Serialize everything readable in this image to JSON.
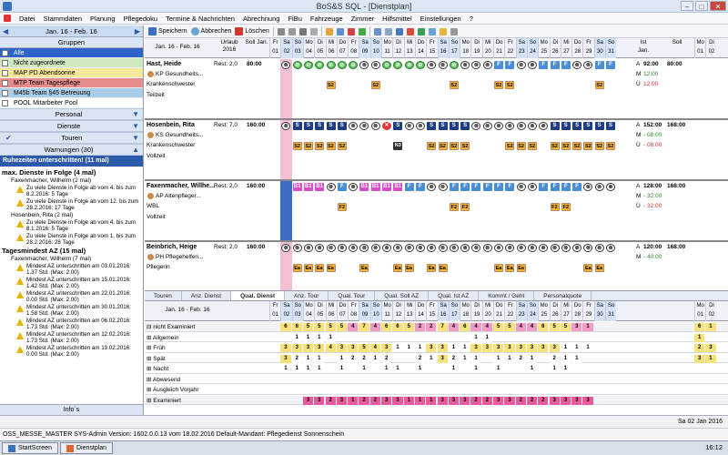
{
  "window": {
    "title": "BoS&S SQL - [Dienstplan]",
    "min": "–",
    "max": "□",
    "close": "✕"
  },
  "menu": [
    "Datei",
    "Stammdaten",
    "Planung",
    "Pflegedoku",
    "Termine & Nachrichten",
    "Abrechnung",
    "FiBu",
    "Fahrzeuge",
    "Zimmer",
    "Hilfsmittel",
    "Einstellungen",
    "?"
  ],
  "left": {
    "date_range": "Jan. 16 - Feb. 16",
    "gruppen_label": "Gruppen",
    "groups": [
      {
        "label": "Alle",
        "color": "#2f63c9",
        "text_color": "#ffffff"
      },
      {
        "label": "Nicht zugeordnete",
        "color": "#cfe8c2",
        "text_color": "#000000"
      },
      {
        "label": "MAP PD Abendsonne",
        "color": "#f6e79a",
        "text_color": "#000000"
      },
      {
        "label": "MTP Team Tagespflege",
        "color": "#e78c8c",
        "text_color": "#000000"
      },
      {
        "label": "M45b Team §45 Betreuung",
        "color": "#a9cde8",
        "text_color": "#000000"
      },
      {
        "label": "POOL Mitarbeiter Pool",
        "color": "#ffffff",
        "text_color": "#000000"
      }
    ],
    "personal_label": "Personal",
    "dienste_label": "Dienste",
    "touren_label": "Touren",
    "warnungen_label": "Warnungen (30)",
    "ruhe_label": "Ruhezeiten unterschritten! (11 mal)",
    "warnings": [
      {
        "type": "head",
        "text": "max. Dienste in Folge (4 mal)"
      },
      {
        "type": "person",
        "text": "Faxenmacher, Wilhelm (2 mal)"
      },
      {
        "type": "item",
        "text": "Zu viele Dienste in Folge ab vom 4. bis zum 8.2.2016: 5 Tage"
      },
      {
        "type": "item",
        "text": "Zu viele Dienste in Folge ab vom 12. bis zum 28.2.2016: 17 Tage"
      },
      {
        "type": "person",
        "text": "Hosenbein, Rita (2 mal)"
      },
      {
        "type": "item",
        "text": "Zu viele Dienste in Folge ab vom 4. bis zum 8.1.2016: 5 Tage"
      },
      {
        "type": "item",
        "text": "Zu viele Dienste in Folge ab vom 1. bis zum 28.2.2016: 28 Tage"
      },
      {
        "type": "head",
        "text": "Tagesmindest AZ (15 mal)"
      },
      {
        "type": "person",
        "text": "Faxenmacher, Wilhelm (7 mal)"
      },
      {
        "type": "item",
        "text": "Mindest AZ unterschritten am 03.01.2016: 1.37 Std. (Max: 2.00)"
      },
      {
        "type": "item",
        "text": "Mindest AZ unterschritten am 15.01.2016: 1.42 Std. (Max: 2.00)"
      },
      {
        "type": "item",
        "text": "Mindest AZ unterschritten am 22.01.2016: 0.00 Std. (Max: 2.00)"
      },
      {
        "type": "item",
        "text": "Mindest AZ unterschritten am 30.01.2016: 1.58 Std. (Max: 2.00)"
      },
      {
        "type": "item",
        "text": "Mindest AZ unterschritten am 06.02.2016: 1.73 Std. (Max: 2.00)"
      },
      {
        "type": "item",
        "text": "Mindest AZ unterschritten am 12.02.2016: 1.73 Std. (Max: 2.00)"
      },
      {
        "type": "item",
        "text": "Mindest AZ unterschritten am 19.02.2016: 0.00 Std. (Max: 2.00)"
      }
    ],
    "infos_label": "Info´s"
  },
  "toolbar": {
    "save": "Speichern",
    "cancel": "Abbrechen",
    "delete": "Löschen"
  },
  "grid": {
    "range": "Jan. 16 - Feb. 16",
    "urlaub": "Urlaub 2016",
    "soll": "Soll Jan.",
    "ist": "Ist",
    "soll_feb": "Soll",
    "month_label": "Jan.",
    "days": [
      {
        "n": "01",
        "d": "Fr"
      },
      {
        "n": "02",
        "d": "Sa"
      },
      {
        "n": "03",
        "d": "So"
      },
      {
        "n": "04",
        "d": "Mo"
      },
      {
        "n": "05",
        "d": "Di"
      },
      {
        "n": "06",
        "d": "Mi"
      },
      {
        "n": "07",
        "d": "Do"
      },
      {
        "n": "08",
        "d": "Fr"
      },
      {
        "n": "09",
        "d": "Sa"
      },
      {
        "n": "10",
        "d": "So"
      },
      {
        "n": "11",
        "d": "Mo"
      },
      {
        "n": "12",
        "d": "Di"
      },
      {
        "n": "13",
        "d": "Mi"
      },
      {
        "n": "14",
        "d": "Do"
      },
      {
        "n": "15",
        "d": "Fr"
      },
      {
        "n": "16",
        "d": "Sa"
      },
      {
        "n": "17",
        "d": "So"
      },
      {
        "n": "18",
        "d": "Mo"
      },
      {
        "n": "19",
        "d": "Di"
      },
      {
        "n": "20",
        "d": "Mi"
      },
      {
        "n": "21",
        "d": "Do"
      },
      {
        "n": "22",
        "d": "Fr"
      },
      {
        "n": "23",
        "d": "Sa"
      },
      {
        "n": "24",
        "d": "So"
      },
      {
        "n": "25",
        "d": "Mo"
      },
      {
        "n": "26",
        "d": "Di"
      },
      {
        "n": "27",
        "d": "Mi"
      },
      {
        "n": "28",
        "d": "Do"
      },
      {
        "n": "29",
        "d": "Fr"
      },
      {
        "n": "30",
        "d": "Sa"
      },
      {
        "n": "31",
        "d": "So"
      }
    ],
    "tail_days": [
      {
        "n": "01",
        "d": "Mo"
      },
      {
        "n": "02",
        "d": "Di"
      }
    ],
    "employees": [
      {
        "name": "Hast, Heide",
        "tag": "KP  Gesundheits...",
        "role": "Krankenschwester",
        "type": "Teilzeit",
        "rest": "Rest: 2,0",
        "soll": "80:00",
        "ist_a": "A",
        "ist_a_v": "92:00",
        "ist_m": "M",
        "ist_m_v": "12:00",
        "ist_u": "Ü",
        "ist_u_v": "12:00",
        "soll_v": "80:00",
        "row1": [
          "",
          "x",
          "o",
          "o",
          "o",
          "o",
          "o",
          "o",
          "x",
          "x",
          "o",
          "o",
          "o",
          "o",
          "x",
          "x",
          "o",
          "x",
          "x",
          "x",
          "f",
          "f",
          "x",
          "x",
          "f",
          "f",
          "f",
          "x",
          "x",
          "f",
          "f"
        ],
        "row2": [
          "",
          "",
          "",
          "",
          "",
          "y",
          "",
          "",
          "",
          "y",
          "",
          "",
          "",
          "",
          "",
          "",
          "y",
          "",
          "",
          "",
          "y",
          "y",
          "",
          "",
          "",
          "",
          "",
          "",
          "",
          "y",
          ""
        ]
      },
      {
        "name": "Hosenbein, Rita",
        "tag": "KS  Gesundheits...",
        "role": "Krankenschwester",
        "type": "Vollzeit",
        "rest": "Rest: 7,0",
        "soll": "160:00",
        "ist_a": "A",
        "ist_a_v": "152:00",
        "ist_m": "M",
        "ist_m_v": "- 08:00",
        "ist_u": "Ü",
        "ist_u_v": "- 08:00",
        "soll_v": "168:00",
        "row1": [
          "",
          "x",
          "s",
          "s",
          "s",
          "s",
          "s",
          "x",
          "x",
          "x",
          "r",
          "s",
          "x",
          "x",
          "s",
          "s",
          "s",
          "s",
          "x",
          "x",
          "x",
          "x",
          "x",
          "x",
          "x",
          "s",
          "s",
          "s",
          "s",
          "s",
          "s"
        ],
        "row2": [
          "",
          "",
          "y",
          "y",
          "y",
          "y",
          "y",
          "",
          "",
          "",
          "",
          "k",
          "",
          "",
          "y",
          "y",
          "y",
          "y",
          "",
          "",
          "",
          "y",
          "y",
          "y",
          "",
          "y",
          "y",
          "y",
          "y",
          "y",
          "y"
        ]
      },
      {
        "name": "Faxenmacher, Willhe...",
        "tag": "AP  Altenpfleger...",
        "role": "WBL",
        "type": "Vollzeit",
        "rest": "Rest: 2,0",
        "soll": "160:00",
        "ist_a": "A",
        "ist_a_v": "128:00",
        "ist_m": "M",
        "ist_m_v": "- 32:00",
        "ist_u": "Ü",
        "ist_u_v": "- 32:00",
        "soll_v": "168:00",
        "row1": [
          "",
          "",
          "b",
          "b",
          "b",
          "x",
          "f",
          "x",
          "b",
          "b",
          "b",
          "b",
          "f",
          "f",
          "x",
          "x",
          "f",
          "f",
          "f",
          "f",
          "f",
          "f",
          "x",
          "x",
          "f",
          "f",
          "f",
          "f",
          "x",
          "x",
          "x"
        ],
        "row2": [
          "",
          "",
          "",
          "",
          "",
          "",
          "y",
          "",
          "",
          "",
          "",
          "",
          "",
          "",
          "",
          "",
          "y",
          "y",
          "",
          "",
          "",
          "",
          "",
          "",
          "",
          "y",
          "y",
          "",
          "",
          "",
          ""
        ]
      },
      {
        "name": "Beinbrich, Heige",
        "tag": "PH  Pflegehelferi...",
        "role": "Pflegerin",
        "type": "",
        "rest": "Rest: 2,0",
        "soll": "160:00",
        "ist_a": "A",
        "ist_a_v": "120:00",
        "ist_m": "M",
        "ist_m_v": "- 40:00",
        "ist_u": "",
        "ist_u_v": "",
        "soll_v": "168:00",
        "row1": [
          "",
          "x",
          "x",
          "x",
          "x",
          "x",
          "x",
          "x",
          "x",
          "x",
          "x",
          "x",
          "x",
          "x",
          "x",
          "x",
          "x",
          "x",
          "x",
          "x",
          "x",
          "x",
          "x",
          "x",
          "x",
          "x",
          "x",
          "x",
          "x",
          "x",
          "x"
        ],
        "row2": [
          "",
          "",
          "y",
          "y",
          "y",
          "y",
          "",
          "",
          "y",
          "",
          "",
          "y",
          "y",
          "",
          "y",
          "y",
          "",
          "",
          "",
          "",
          "y",
          "y",
          "y",
          "",
          "",
          "",
          "",
          "",
          "y",
          "y",
          ""
        ]
      }
    ]
  },
  "tabs": [
    "Touren",
    "Anz. Dienst",
    "Qual. Dienst",
    "Anz. Tour",
    "Qual. Tour",
    "Qual. Soll AZ",
    "Qual. Ist AZ",
    "Kommt / Geht",
    "Personalquote"
  ],
  "active_tab": "Qual. Dienst",
  "lower": {
    "range": "Jan. 16 - Feb. 16",
    "rows": [
      {
        "label": "⊟ nicht Examiniert",
        "vals": [
          "",
          "6",
          "6",
          "5",
          "5",
          "5",
          "5",
          "4",
          "7",
          "4",
          "6",
          "6",
          "5",
          "2",
          "2",
          "7",
          "4",
          "6",
          "4",
          "4",
          "5",
          "5",
          "4",
          "4",
          "6",
          "5",
          "5",
          "3",
          "1",
          "",
          ""
        ],
        "tail": [
          "6",
          "1"
        ],
        "hl": true
      },
      {
        "label": "   ⊞ Allgemein",
        "vals": [
          "",
          "",
          "1",
          "1",
          "1",
          "1",
          "",
          "",
          "",
          "",
          "",
          "",
          "",
          "",
          "",
          "",
          "",
          "",
          "1",
          "1",
          "",
          "",
          "",
          "",
          "",
          "",
          "",
          "",
          "",
          "",
          ""
        ],
        "tail": [
          "1",
          ""
        ]
      },
      {
        "label": "   ⊞ Früh",
        "vals": [
          "",
          "3",
          "3",
          "3",
          "3",
          "4",
          "3",
          "3",
          "5",
          "4",
          "3",
          "1",
          "1",
          "1",
          "3",
          "3",
          "1",
          "1",
          "3",
          "3",
          "3",
          "3",
          "3",
          "3",
          "3",
          "3",
          "1",
          "1",
          "1",
          "",
          ""
        ],
        "tail": [
          "2",
          "3"
        ]
      },
      {
        "label": "   ⊞ Spät",
        "vals": [
          "",
          "3",
          "2",
          "1",
          "1",
          "",
          "1",
          "2",
          "2",
          "1",
          "2",
          "",
          "",
          "2",
          "1",
          "3",
          "2",
          "1",
          "1",
          "",
          "1",
          "1",
          "2",
          "1",
          "",
          "2",
          "1",
          "1",
          "",
          "",
          ""
        ],
        "tail": [
          "3",
          "1"
        ]
      },
      {
        "label": "   ⊞ Nacht",
        "vals": [
          "",
          "1",
          "1",
          "1",
          "1",
          "",
          "1",
          "",
          "1",
          "",
          "1",
          "1",
          "",
          "1",
          "",
          "",
          "1",
          "",
          "1",
          "",
          "1",
          "",
          "",
          "1",
          "",
          "1",
          "1",
          "",
          "",
          "",
          ""
        ],
        "tail": [
          "",
          ""
        ]
      },
      {
        "label": "   ⊞ Abwesend",
        "vals": [
          "",
          "",
          "",
          "",
          "",
          "",
          "",
          "",
          "",
          "",
          "",
          "",
          "",
          "",
          "",
          "",
          "",
          "",
          "",
          "",
          "",
          "",
          "",
          "",
          "",
          "",
          "",
          "",
          "",
          "",
          ""
        ],
        "tail": [
          "",
          ""
        ]
      },
      {
        "label": "   ⊞ Ausgleich Vorjahr",
        "vals": [
          "",
          "",
          "",
          "",
          "",
          "",
          "",
          "",
          "",
          "",
          "",
          "",
          "",
          "",
          "",
          "",
          "",
          "",
          "",
          "",
          "",
          "",
          "",
          "",
          "",
          "",
          "",
          "",
          "",
          "",
          ""
        ],
        "tail": [
          "",
          ""
        ]
      },
      {
        "label": "⊞ Examiniert",
        "vals": [
          "",
          "",
          "",
          "3",
          "3",
          "2",
          "3",
          "1",
          "2",
          "2",
          "3",
          "3",
          "1",
          "1",
          "1",
          "3",
          "3",
          "3",
          "2",
          "2",
          "3",
          "3",
          "2",
          "2",
          "2",
          "3",
          "3",
          "3",
          "3",
          "",
          ""
        ],
        "tail": [
          "",
          ""
        ],
        "hl": true
      }
    ]
  },
  "statusbar": {
    "date": "Sa 02 Jan 2016"
  },
  "infobar": {
    "text": "OSS_MESSE_MASTER SYS-Admin Version: 1602.0.0.13 vom 18.02.2016 Default-Mandant: Pflegedienst Sonnenschein"
  },
  "taskbar": {
    "start": "StartScreen",
    "app": "Dienstplan",
    "time": "16:12"
  }
}
